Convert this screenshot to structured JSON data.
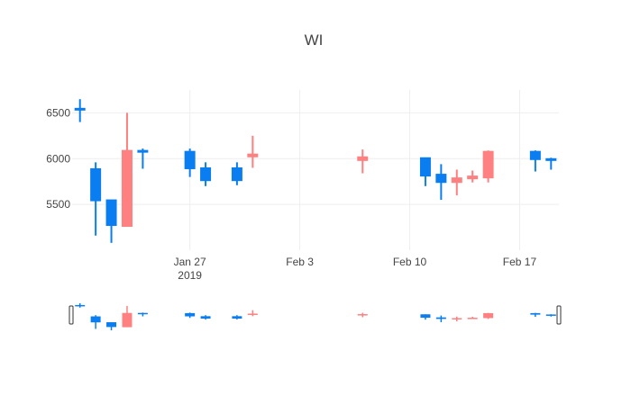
{
  "chart_data": {
    "type": "candlestick",
    "title": "WI",
    "x_ticks": [
      {
        "date": "2019-01-27",
        "label": "Jan 27",
        "sublabel": "2019"
      },
      {
        "date": "2019-02-03",
        "label": "Feb 3"
      },
      {
        "date": "2019-02-10",
        "label": "Feb 10"
      },
      {
        "date": "2019-02-17",
        "label": "Feb 17"
      }
    ],
    "y_ticks": [
      5500,
      6000,
      6500
    ],
    "xlim": [
      "2019-01-20",
      "2019-02-19"
    ],
    "ylim": [
      5000,
      6750
    ],
    "grid": true,
    "increasing_color": "#ff8080",
    "decreasing_color": "#0a7ef0",
    "rangeslider": true,
    "candles": [
      {
        "date": "2019-01-20",
        "open": 6550,
        "high": 6650,
        "low": 6400,
        "close": 6530
      },
      {
        "date": "2019-01-21",
        "open": 5890,
        "high": 5960,
        "low": 5160,
        "close": 5540
      },
      {
        "date": "2019-01-22",
        "open": 5550,
        "high": 5550,
        "low": 5080,
        "close": 5270
      },
      {
        "date": "2019-01-23",
        "open": 5260,
        "high": 6500,
        "low": 5260,
        "close": 6090
      },
      {
        "date": "2019-01-24",
        "open": 6090,
        "high": 6110,
        "low": 5890,
        "close": 6070
      },
      {
        "date": "2019-01-27",
        "open": 6080,
        "high": 6110,
        "low": 5800,
        "close": 5890
      },
      {
        "date": "2019-01-28",
        "open": 5900,
        "high": 5960,
        "low": 5700,
        "close": 5760
      },
      {
        "date": "2019-01-30",
        "open": 5900,
        "high": 5960,
        "low": 5710,
        "close": 5760
      },
      {
        "date": "2019-01-31",
        "open": 6020,
        "high": 6250,
        "low": 5900,
        "close": 6050
      },
      {
        "date": "2019-02-07",
        "open": 5980,
        "high": 6100,
        "low": 5840,
        "close": 6020
      },
      {
        "date": "2019-02-11",
        "open": 6010,
        "high": 6010,
        "low": 5700,
        "close": 5810
      },
      {
        "date": "2019-02-12",
        "open": 5830,
        "high": 5940,
        "low": 5550,
        "close": 5740
      },
      {
        "date": "2019-02-13",
        "open": 5740,
        "high": 5880,
        "low": 5600,
        "close": 5790
      },
      {
        "date": "2019-02-14",
        "open": 5780,
        "high": 5870,
        "low": 5740,
        "close": 5810
      },
      {
        "date": "2019-02-15",
        "open": 5790,
        "high": 6090,
        "low": 5740,
        "close": 6080
      },
      {
        "date": "2019-02-18",
        "open": 6080,
        "high": 6090,
        "low": 5860,
        "close": 5990
      },
      {
        "date": "2019-02-19",
        "open": 6000,
        "high": 6010,
        "low": 5880,
        "close": 5980
      }
    ]
  }
}
